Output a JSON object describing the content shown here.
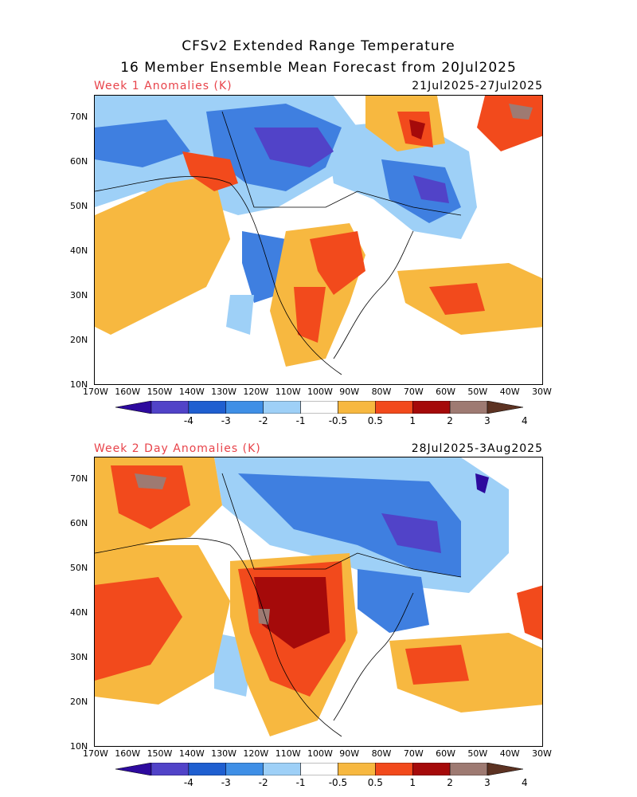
{
  "title": {
    "line1": "CFSv2 Extended Range Temperature",
    "line2": "16 Member Ensemble Mean Forecast from 20Jul2025"
  },
  "panels": [
    {
      "label": "Week 1 Anomalies (K)",
      "dates": "21Jul2025-27Jul2025"
    },
    {
      "label": "Week 2 Day Anomalies (K)",
      "dates": "28Jul2025-3Aug2025"
    }
  ],
  "axes": {
    "lon_labels": [
      "170W",
      "160W",
      "150W",
      "140W",
      "130W",
      "120W",
      "110W",
      "100W",
      "90W",
      "80W",
      "70W",
      "60W",
      "50W",
      "40W",
      "30W"
    ],
    "lat_labels": [
      "70N",
      "60N",
      "50N",
      "40N",
      "30N",
      "20N",
      "10N"
    ],
    "lon_range": [
      -170,
      -30
    ],
    "lat_range": [
      10,
      75
    ]
  },
  "colorbar": {
    "labels": [
      "-4",
      "-3",
      "-2",
      "-1",
      "-0.5",
      "0.5",
      "1",
      "2",
      "3",
      "4"
    ],
    "colors": [
      "#2d0a9e",
      "#5143c8",
      "#1f5fd0",
      "#3f8fe6",
      "#9ed0f7",
      "#ffffff",
      "#f7b840",
      "#f24a1c",
      "#a50a0a",
      "#9e7a72",
      "#5c3222"
    ]
  },
  "map_data": {
    "colors": {
      "cool_deep": "#5143c8",
      "cool": "#3f7fe0",
      "cool_light": "#9ed0f7",
      "warm_light": "#f7b840",
      "warm": "#f24a1c",
      "warm_deep": "#a50a0a",
      "warm_max": "#9e7a72"
    }
  }
}
